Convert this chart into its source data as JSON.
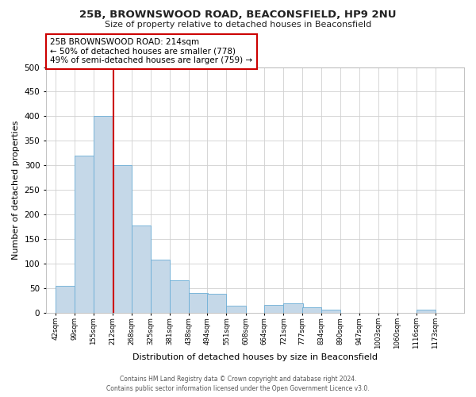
{
  "title": "25B, BROWNSWOOD ROAD, BEACONSFIELD, HP9 2NU",
  "subtitle": "Size of property relative to detached houses in Beaconsfield",
  "xlabel": "Distribution of detached houses by size in Beaconsfield",
  "ylabel": "Number of detached properties",
  "footer_line1": "Contains HM Land Registry data © Crown copyright and database right 2024.",
  "footer_line2": "Contains public sector information licensed under the Open Government Licence v3.0.",
  "bar_edges": [
    42,
    99,
    155,
    212,
    268,
    325,
    381,
    438,
    494,
    551,
    608,
    664,
    721,
    777,
    834,
    890,
    947,
    1003,
    1060,
    1116,
    1173
  ],
  "bar_heights": [
    55,
    320,
    400,
    300,
    178,
    108,
    65,
    40,
    38,
    13,
    0,
    15,
    18,
    10,
    5,
    0,
    0,
    0,
    0,
    5
  ],
  "bar_color": "#c5d8e8",
  "bar_edgecolor": "#6baed6",
  "reference_line_x": 214,
  "reference_line_color": "#cc0000",
  "annotation_line1": "25B BROWNSWOOD ROAD: 214sqm",
  "annotation_line2": "← 50% of detached houses are smaller (778)",
  "annotation_line3": "49% of semi-detached houses are larger (759) →",
  "annotation_box_edgecolor": "#cc0000",
  "annotation_box_facecolor": "#ffffff",
  "ylim": [
    0,
    500
  ],
  "yticks": [
    0,
    50,
    100,
    150,
    200,
    250,
    300,
    350,
    400,
    450,
    500
  ],
  "tick_labels": [
    "42sqm",
    "99sqm",
    "155sqm",
    "212sqm",
    "268sqm",
    "325sqm",
    "381sqm",
    "438sqm",
    "494sqm",
    "551sqm",
    "608sqm",
    "664sqm",
    "721sqm",
    "777sqm",
    "834sqm",
    "890sqm",
    "947sqm",
    "1003sqm",
    "1060sqm",
    "1116sqm",
    "1173sqm"
  ],
  "bg_color": "#ffffff",
  "grid_color": "#d0d0d0"
}
